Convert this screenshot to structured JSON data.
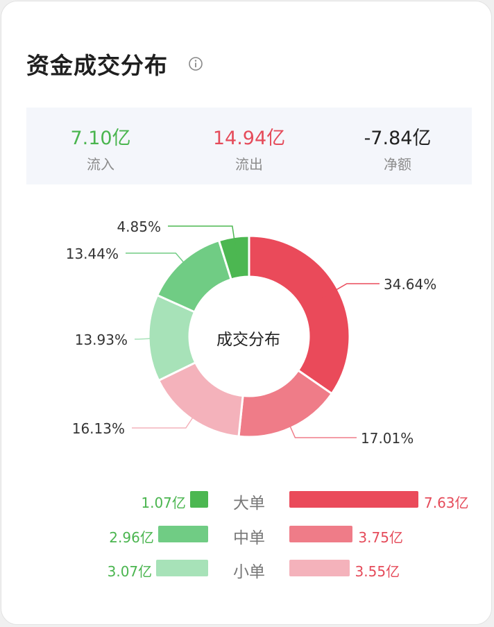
{
  "header": {
    "title": "资金成交分布",
    "info_icon": "info-icon"
  },
  "summary": [
    {
      "value": "7.10亿",
      "label": "流入",
      "color": "#4ab54f"
    },
    {
      "value": "14.94亿",
      "label": "流出",
      "color": "#e54b5a"
    },
    {
      "value": "-7.84亿",
      "label": "净额",
      "color": "#222222"
    }
  ],
  "chart_data": {
    "type": "pie",
    "donut": true,
    "center_label": "成交分布",
    "slices": [
      {
        "category": "大单流出",
        "value": 34.64,
        "label": "34.64%",
        "color": "#ea4a5a"
      },
      {
        "category": "中单流出",
        "value": 17.01,
        "label": "17.01%",
        "color": "#ef7c88"
      },
      {
        "category": "小单流出",
        "value": 16.13,
        "label": "16.13%",
        "color": "#f4b2bb"
      },
      {
        "category": "小单流入",
        "value": 13.93,
        "label": "13.93%",
        "color": "#a7e2b8"
      },
      {
        "category": "中单流入",
        "value": 13.44,
        "label": "13.44%",
        "color": "#70cc84"
      },
      {
        "category": "大单流入",
        "value": 4.85,
        "label": "4.85%",
        "color": "#4cb751"
      }
    ],
    "legend": [
      {
        "category": "大单",
        "inflow": 1.07,
        "inflow_label": "1.07亿",
        "outflow": 7.63,
        "outflow_label": "7.63亿"
      },
      {
        "category": "中单",
        "inflow": 2.96,
        "inflow_label": "2.96亿",
        "outflow": 3.75,
        "outflow_label": "3.75亿"
      },
      {
        "category": "小单",
        "inflow": 3.07,
        "inflow_label": "3.07亿",
        "outflow": 3.55,
        "outflow_label": "3.55亿"
      }
    ],
    "colors": {
      "inflow": [
        "#4cb751",
        "#70cc84",
        "#a7e2b8"
      ],
      "outflow": [
        "#ea4a5a",
        "#ef7c88",
        "#f4b2bb"
      ]
    }
  }
}
